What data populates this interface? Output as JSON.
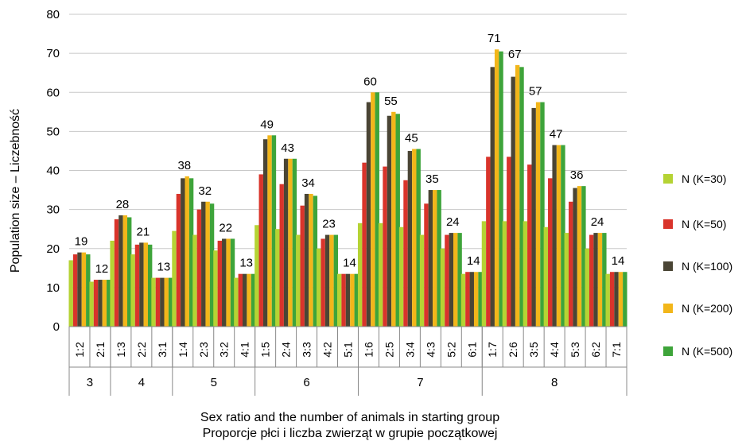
{
  "chart_data": {
    "type": "bar",
    "ylabel": "Population size – Liczebność",
    "xlabel_line1": "Sex ratio and the number of animals in starting group",
    "xlabel_line2": "Proporcje płci i liczba zwierząt w grupie początkowej",
    "ylim": [
      0,
      80
    ],
    "yticks": [
      0,
      10,
      20,
      30,
      40,
      50,
      60,
      70,
      80
    ],
    "grid": true,
    "legend_position": "right",
    "groups": [
      {
        "label": "3",
        "categories": [
          "1:2",
          "2:1"
        ]
      },
      {
        "label": "4",
        "categories": [
          "1:3",
          "2:2",
          "3:1"
        ]
      },
      {
        "label": "5",
        "categories": [
          "1:4",
          "2:3",
          "3:2",
          "4:1"
        ]
      },
      {
        "label": "6",
        "categories": [
          "1:5",
          "2:4",
          "3:3",
          "4:2",
          "5:1"
        ]
      },
      {
        "label": "7",
        "categories": [
          "1:6",
          "2:5",
          "3:4",
          "4:3",
          "5:2",
          "6:1"
        ]
      },
      {
        "label": "8",
        "categories": [
          "1:7",
          "2:6",
          "3:5",
          "4:4",
          "5:3",
          "6:2",
          "7:1"
        ]
      }
    ],
    "categories": [
      "1:2",
      "2:1",
      "1:3",
      "2:2",
      "3:1",
      "1:4",
      "2:3",
      "3:2",
      "4:1",
      "1:5",
      "2:4",
      "3:3",
      "4:2",
      "5:1",
      "1:6",
      "2:5",
      "3:4",
      "4:3",
      "5:2",
      "6:1",
      "1:7",
      "2:6",
      "3:5",
      "4:4",
      "5:3",
      "6:2",
      "7:1"
    ],
    "series": [
      {
        "name": "N (K=30)",
        "color": "#b5d334",
        "values": [
          17,
          11.5,
          22,
          18.5,
          12.5,
          24.5,
          23.5,
          19.5,
          12.5,
          26,
          25,
          23.5,
          20,
          13.5,
          26.5,
          26.5,
          25.5,
          23.5,
          20,
          13.5,
          27,
          27,
          27,
          25.5,
          24,
          20,
          13.5
        ]
      },
      {
        "name": "N (K=50)",
        "color": "#d9342b",
        "values": [
          18.5,
          12,
          27.5,
          21,
          12.5,
          34,
          30,
          22,
          13.5,
          39,
          36.5,
          31,
          22.5,
          13.5,
          42,
          41,
          37.5,
          31.5,
          23.5,
          14,
          43.5,
          43.5,
          41.5,
          38,
          32,
          23.5,
          14
        ]
      },
      {
        "name": "N (K=100)",
        "color": "#4a4535",
        "values": [
          19,
          12,
          28.5,
          21.5,
          12.5,
          38,
          32,
          22.5,
          13.5,
          48,
          43,
          34,
          23.5,
          13.5,
          57.5,
          54,
          45,
          35,
          24,
          14,
          66.5,
          64,
          56,
          46.5,
          35.5,
          24,
          14
        ]
      },
      {
        "name": "N (K=200)",
        "color": "#f2b61a",
        "values": [
          19,
          12,
          28.5,
          21.5,
          12.5,
          38.5,
          32,
          22.5,
          13.5,
          49,
          43,
          34,
          23.5,
          13.5,
          60,
          55,
          45.5,
          35,
          24,
          14,
          71,
          67,
          57.5,
          46.5,
          36,
          24,
          14
        ]
      },
      {
        "name": "N (K=500)",
        "color": "#3ea43a",
        "values": [
          18.5,
          12,
          28,
          21,
          12.5,
          38,
          31.5,
          22.5,
          13.5,
          49,
          43,
          33.5,
          23.5,
          13.5,
          60,
          54.5,
          45.5,
          35,
          24,
          14,
          70.5,
          66.5,
          57.5,
          46.5,
          36,
          24,
          14
        ]
      }
    ],
    "data_labels": [
      19,
      12,
      28,
      21,
      13,
      38,
      32,
      22,
      13,
      49,
      43,
      34,
      23,
      14,
      60,
      55,
      45,
      35,
      24,
      14,
      71,
      67,
      57,
      47,
      36,
      24,
      14
    ]
  }
}
